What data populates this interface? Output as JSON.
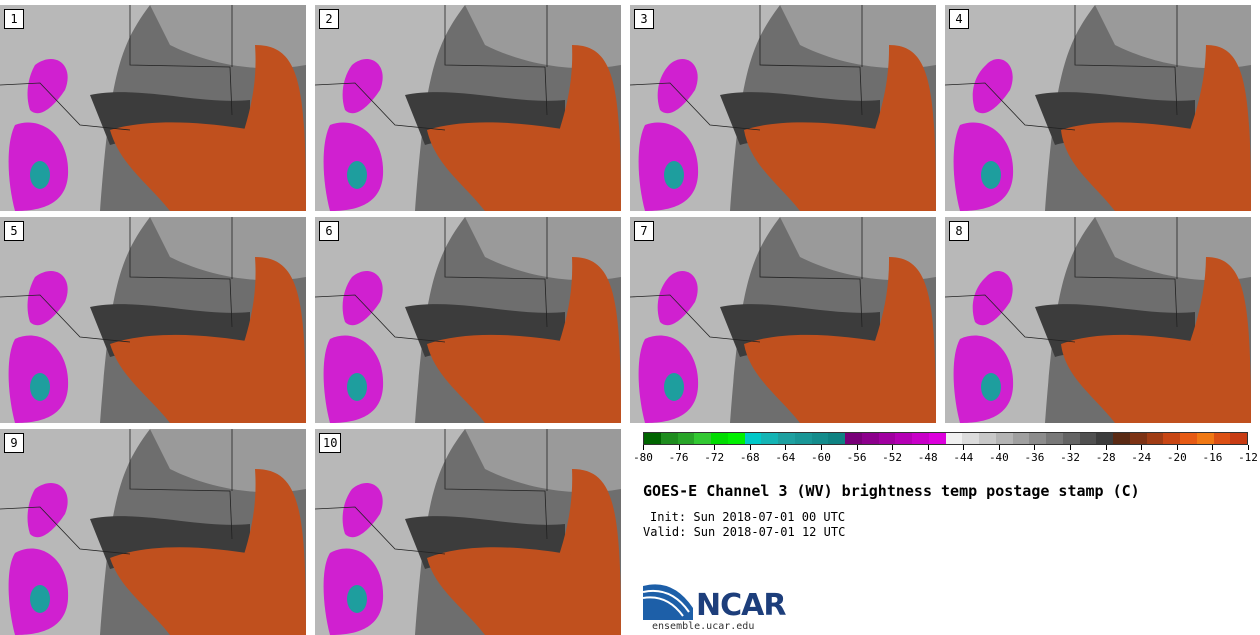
{
  "panels": [
    {
      "label": "1"
    },
    {
      "label": "2"
    },
    {
      "label": "3"
    },
    {
      "label": "4"
    },
    {
      "label": "5"
    },
    {
      "label": "6"
    },
    {
      "label": "7"
    },
    {
      "label": "8"
    },
    {
      "label": "9"
    },
    {
      "label": "10"
    }
  ],
  "colorbar": {
    "colors": [
      "#006400",
      "#1e8c1e",
      "#28a428",
      "#32c832",
      "#00dc00",
      "#00f000",
      "#00c8c8",
      "#14b4b4",
      "#1ea0a0",
      "#199696",
      "#148c8c",
      "#0f8282",
      "#780078",
      "#8c008c",
      "#a000a0",
      "#b400b4",
      "#c800c8",
      "#dc00dc",
      "#f0f0f0",
      "#dcdcdc",
      "#c8c8c8",
      "#b4b4b4",
      "#a0a0a0",
      "#8c8c8c",
      "#787878",
      "#646464",
      "#505050",
      "#3c3c3c",
      "#5a2a14",
      "#7d3214",
      "#a03c14",
      "#c84614",
      "#e65a14",
      "#f07814",
      "#dc5014",
      "#c83c14"
    ],
    "tick_labels": [
      "-80",
      "-76",
      "-72",
      "-68",
      "-64",
      "-60",
      "-56",
      "-52",
      "-48",
      "-44",
      "-40",
      "-36",
      "-32",
      "-28",
      "-24",
      "-20",
      "-16",
      "-12"
    ]
  },
  "title": "GOES-E Channel 3 (WV) brightness temp postage stamp (C)",
  "init": "Init: Sun 2018-07-01 00 UTC",
  "valid": "Valid: Sun 2018-07-01 12 UTC",
  "logo": {
    "text": "NCAR",
    "url": "ensemble.ucar.edu"
  },
  "colors": {
    "dry": "#c0501e",
    "moist": "#d020d0",
    "cold": "#1e9e9e",
    "light": "#b8b8b8",
    "dark": "#3c3c3c"
  }
}
